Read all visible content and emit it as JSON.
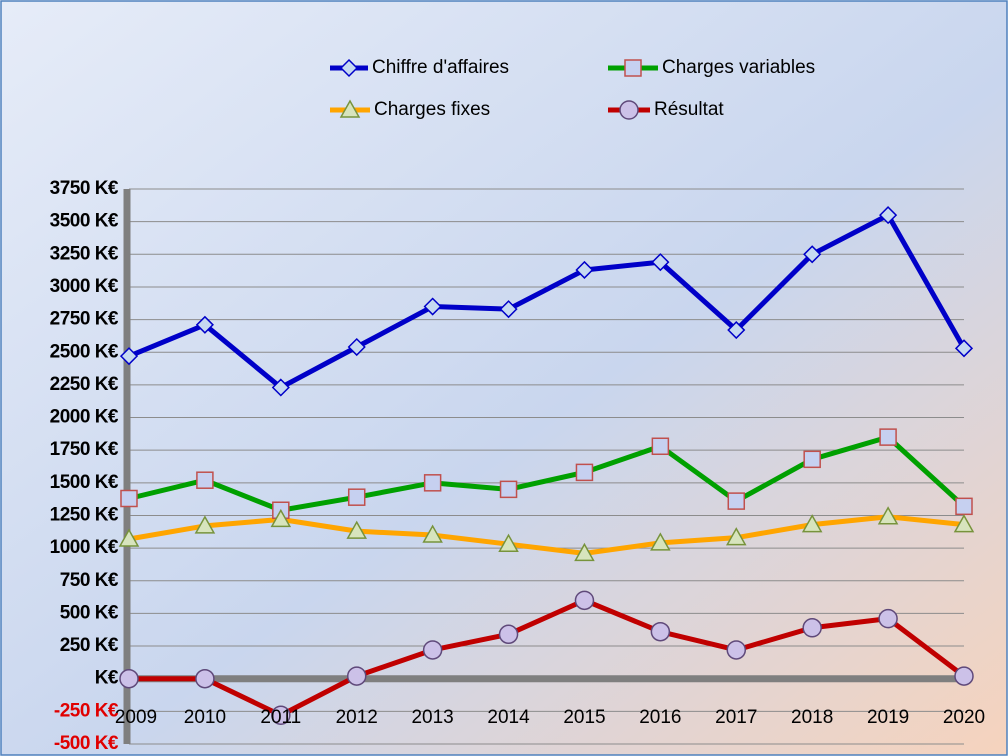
{
  "chart_data": {
    "type": "line",
    "categories": [
      "2009",
      "2010",
      "2011",
      "2012",
      "2013",
      "2014",
      "2015",
      "2016",
      "2017",
      "2018",
      "2019",
      "2020"
    ],
    "series": [
      {
        "name": "Chiffre d'affaires",
        "color": "#0000c8",
        "marker": "diamond",
        "marker_color": "#c6d9f1",
        "values": [
          2470,
          2710,
          2230,
          2540,
          2850,
          2830,
          3130,
          3190,
          2670,
          3250,
          3550,
          2530
        ]
      },
      {
        "name": "Charges variables",
        "color": "#00a000",
        "marker": "square",
        "marker_color": "#c6d0f0",
        "marker_stroke": "#c0504d",
        "values": [
          1380,
          1520,
          1290,
          1390,
          1500,
          1450,
          1580,
          1780,
          1360,
          1680,
          1850,
          1320
        ]
      },
      {
        "name": "Charges fixes",
        "color": "#ffa500",
        "marker": "triangle",
        "marker_color": "#d7e4bd",
        "marker_stroke": "#77933c",
        "values": [
          1070,
          1170,
          1220,
          1130,
          1100,
          1030,
          960,
          1040,
          1080,
          1180,
          1240,
          1180
        ]
      },
      {
        "name": "Résultat",
        "color": "#c00000",
        "marker": "circle",
        "marker_color": "#ccc1e8",
        "marker_stroke": "#5f497a",
        "values": [
          0,
          0,
          -280,
          20,
          220,
          340,
          600,
          360,
          220,
          390,
          460,
          20
        ]
      }
    ],
    "ylim": [
      -500,
      3750
    ],
    "yticks": [
      {
        "value": -500,
        "label": "-500 K€"
      },
      {
        "value": -250,
        "label": "-250 K€"
      },
      {
        "value": 0,
        "label": "K€"
      },
      {
        "value": 250,
        "label": "250 K€"
      },
      {
        "value": 500,
        "label": "500 K€"
      },
      {
        "value": 750,
        "label": "750 K€"
      },
      {
        "value": 1000,
        "label": "1000 K€"
      },
      {
        "value": 1250,
        "label": "1250 K€"
      },
      {
        "value": 1500,
        "label": "1500 K€"
      },
      {
        "value": 1750,
        "label": "1750 K€"
      },
      {
        "value": 2000,
        "label": "2000 K€"
      },
      {
        "value": 2250,
        "label": "2250 K€"
      },
      {
        "value": 2500,
        "label": "2500 K€"
      },
      {
        "value": 2750,
        "label": "2750 K€"
      },
      {
        "value": 3000,
        "label": "3000 K€"
      },
      {
        "value": 3250,
        "label": "3250 K€"
      },
      {
        "value": 3500,
        "label": "3500 K€"
      },
      {
        "value": 3750,
        "label": "3750 K€"
      }
    ],
    "grid": true,
    "legend": "top"
  }
}
